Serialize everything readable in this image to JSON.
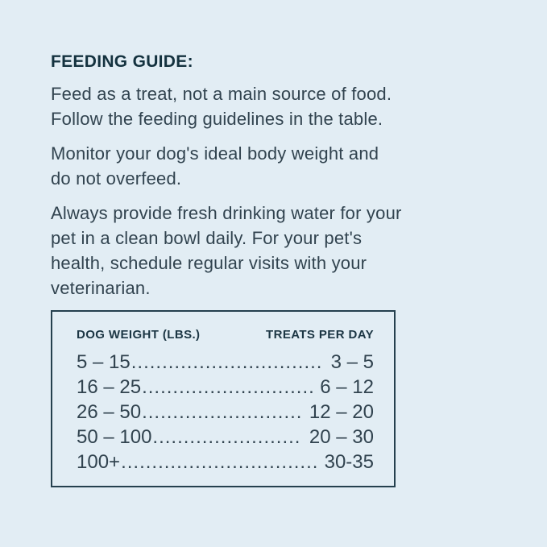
{
  "page": {
    "title": "FEEDING GUIDE:",
    "paragraphs": [
      "Feed as a treat, not a main source of food.\nFollow the feeding guidelines in the table.",
      "Monitor your dog's ideal body weight and\ndo not overfeed.",
      "Always provide fresh drinking water for your\npet in a clean bowl daily. For your pet's\nhealth, schedule regular visits with your\nveterinarian."
    ]
  },
  "table": {
    "headers": [
      "DOG WEIGHT (LBS.)",
      "TREATS PER DAY"
    ],
    "rows": [
      {
        "weight": "5 – 15",
        "treats": "3 – 5"
      },
      {
        "weight": "16 – 25",
        "treats": "6 – 12"
      },
      {
        "weight": "26 – 50",
        "treats": "12 – 20"
      },
      {
        "weight": "50 – 100",
        "treats": "20 – 30"
      },
      {
        "weight": "100+",
        "treats": "30-35"
      }
    ]
  },
  "colors": {
    "background": "#e2edf4",
    "body_text": "#31434f",
    "heading_text": "#14323f",
    "table_border": "#25404e"
  }
}
